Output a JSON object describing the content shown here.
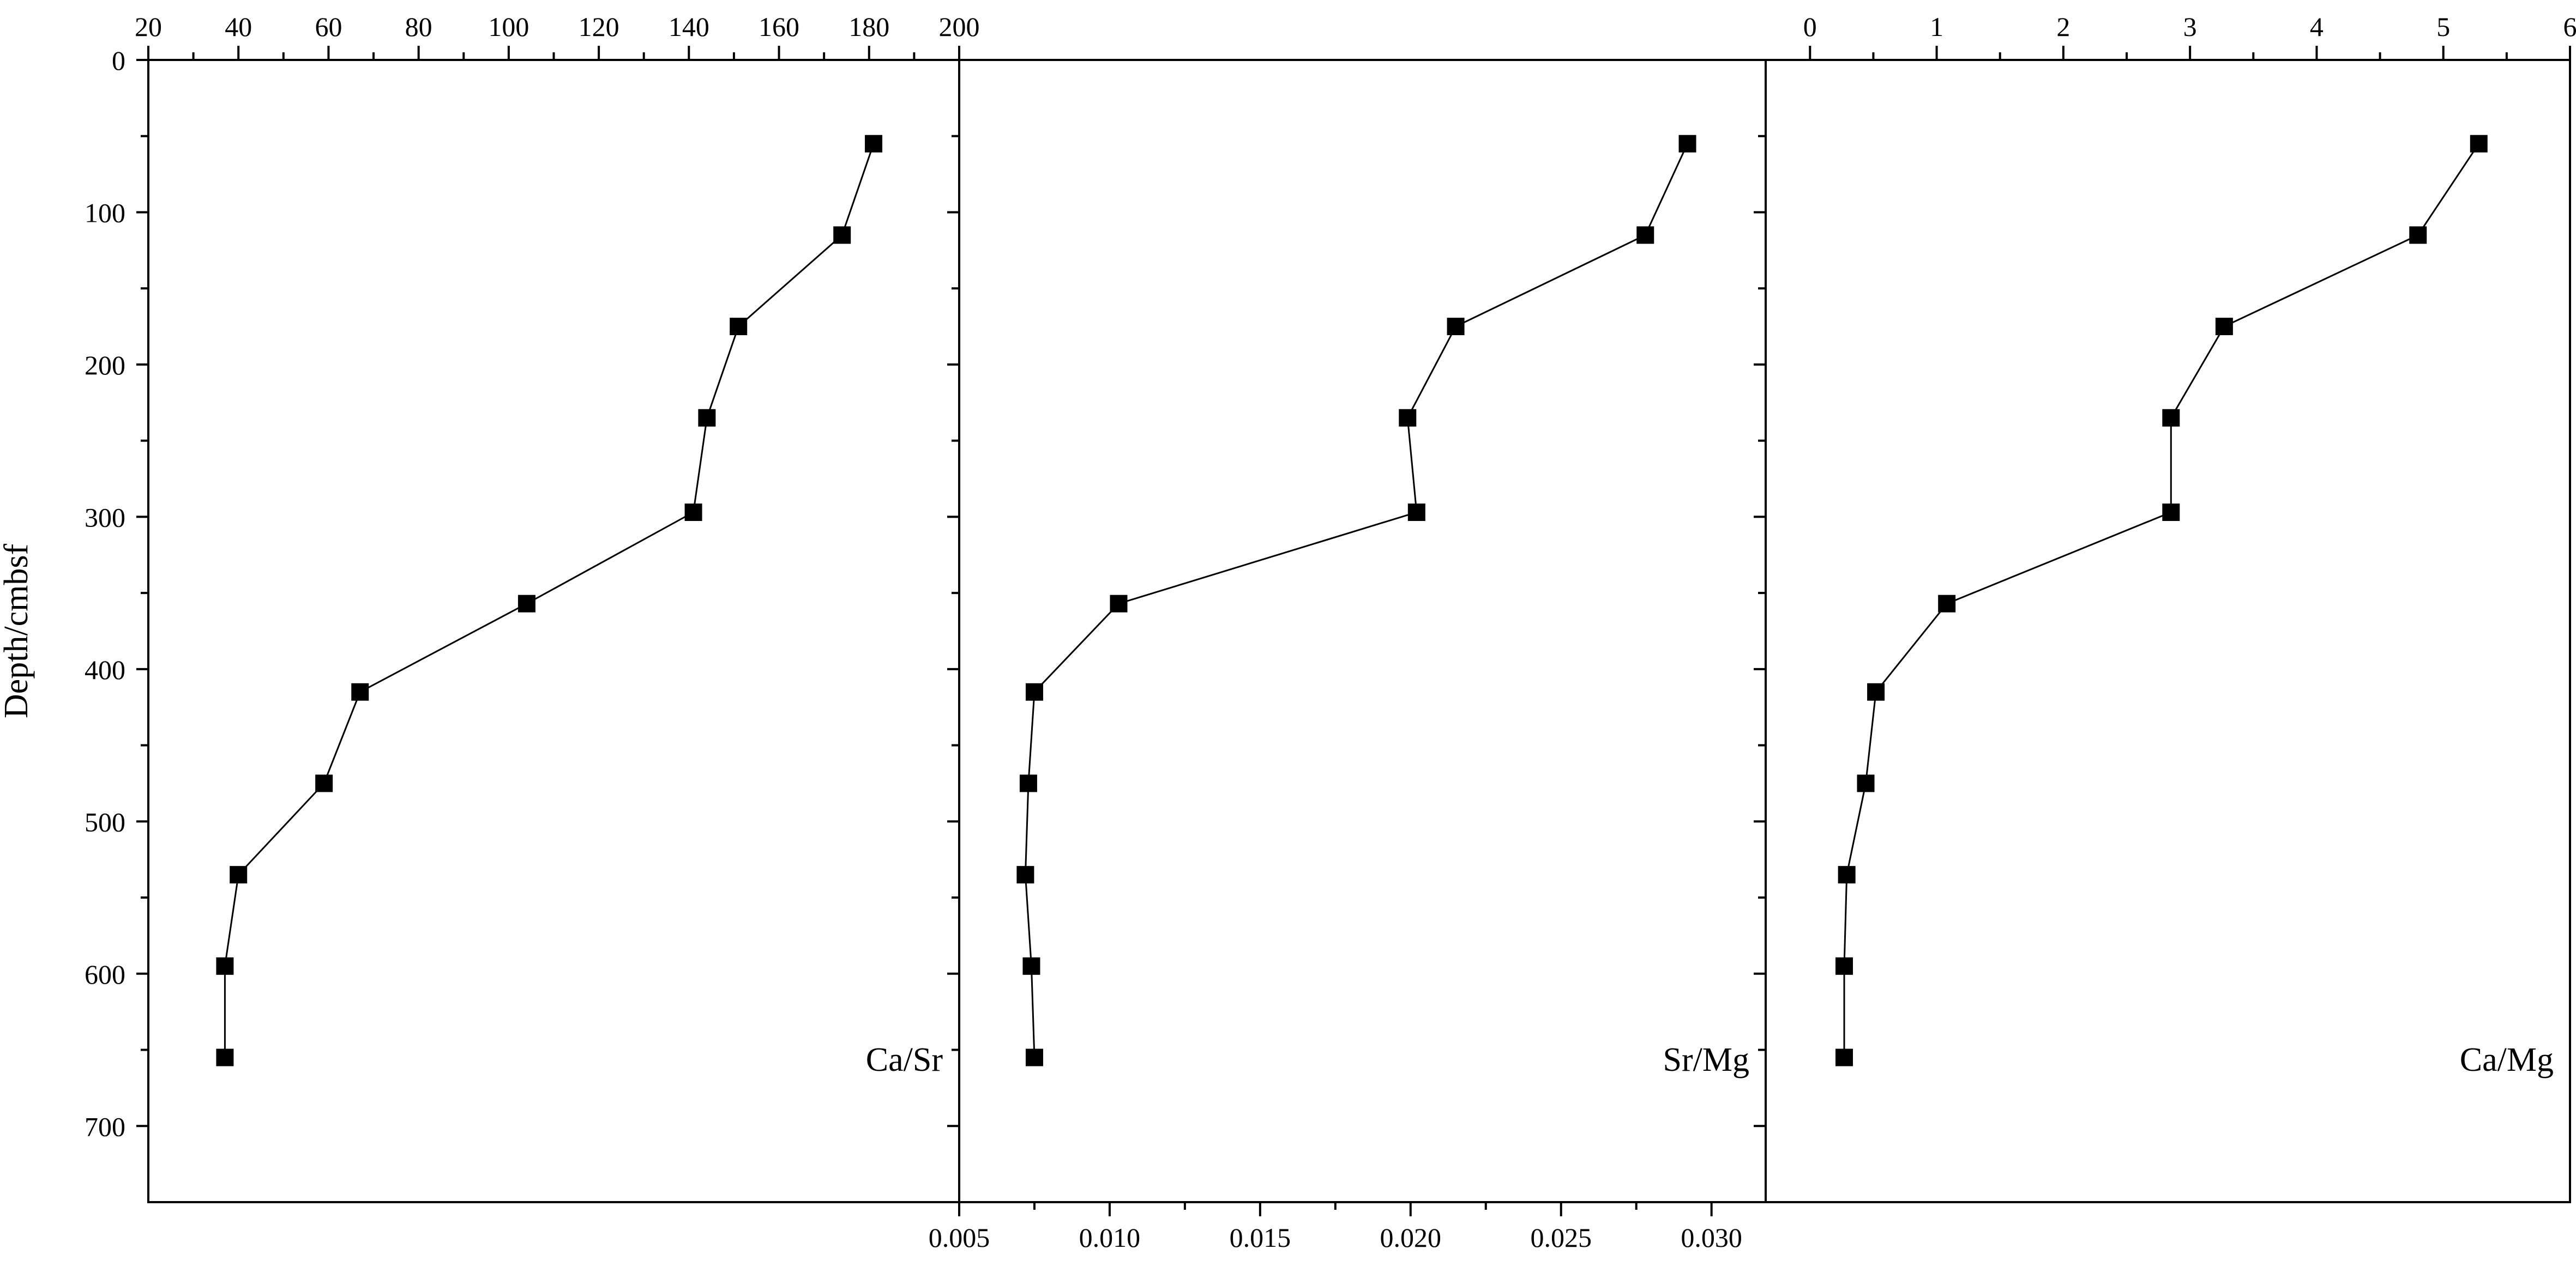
{
  "chart_data": [
    {
      "type": "line",
      "xlabel": "",
      "ylabel": "Depth/cmbsf",
      "panel_label": "Ca/Sr",
      "x_axis_position": "top",
      "xlim": [
        20,
        200
      ],
      "xticks": [
        20,
        40,
        60,
        80,
        100,
        120,
        140,
        160,
        180,
        200
      ],
      "ylim": [
        0,
        750
      ],
      "yticks": [
        0,
        100,
        200,
        300,
        400,
        500,
        600,
        700
      ],
      "y_reversed": true,
      "marker": "square",
      "series": [
        {
          "x": [
            181,
            174,
            151,
            144,
            141,
            104,
            67,
            59,
            40,
            37,
            37
          ],
          "y": [
            55,
            115,
            175,
            235,
            297,
            357,
            415,
            475,
            535,
            595,
            655
          ]
        }
      ]
    },
    {
      "type": "line",
      "xlabel": "",
      "ylabel": "",
      "panel_label": "Sr/Mg",
      "x_axis_position": "bottom",
      "xlim": [
        0.005,
        0.0318
      ],
      "xticks": [
        "0.005",
        "0.010",
        "0.015",
        "0.020",
        "0.025",
        "0.030"
      ],
      "ylim": [
        0,
        750
      ],
      "y_reversed": true,
      "marker": "square",
      "series": [
        {
          "x": [
            0.0292,
            0.0278,
            0.0215,
            0.0199,
            0.0202,
            0.0103,
            0.0075,
            0.0073,
            0.0072,
            0.0074,
            0.0075
          ],
          "y": [
            55,
            115,
            175,
            235,
            297,
            357,
            415,
            475,
            535,
            595,
            655
          ]
        }
      ]
    },
    {
      "type": "line",
      "xlabel": "",
      "ylabel": "",
      "panel_label": "Ca/Mg",
      "x_axis_position": "top",
      "xlim": [
        -0.35,
        6
      ],
      "xticks": [
        0,
        1,
        2,
        3,
        4,
        5,
        6
      ],
      "ylim": [
        0,
        750
      ],
      "y_reversed": true,
      "marker": "square",
      "series": [
        {
          "x": [
            5.28,
            4.8,
            3.27,
            2.85,
            2.85,
            1.08,
            0.52,
            0.44,
            0.29,
            0.27,
            0.27
          ],
          "y": [
            55,
            115,
            175,
            235,
            297,
            357,
            415,
            475,
            535,
            595,
            655
          ]
        }
      ]
    }
  ]
}
